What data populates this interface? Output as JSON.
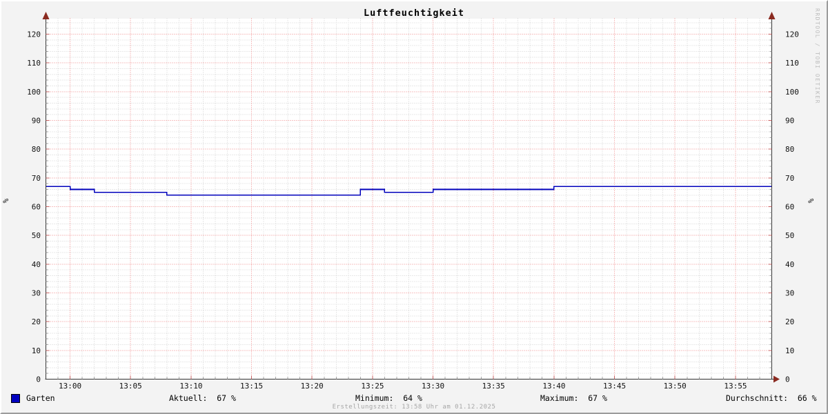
{
  "title": "Luftfeuchtigkeit",
  "watermark": "RRDTOOL / TOBI OETIKER",
  "footer": "Erstellungszeit: 13:58 Uhr am 01.12.2025",
  "legend": {
    "series_label": "Garten",
    "series_color": "#0000bf",
    "aktuell": "Aktuell:  67 %",
    "minimum": "Minimum:  64 %",
    "maximum": "Maximum:  67 %",
    "durchschnitt": "Durchschnitt:  66 %"
  },
  "chart_data": {
    "type": "line",
    "title": "Luftfeuchtigkeit",
    "xlabel": "",
    "ylabel": "%",
    "x_range": [
      "12:58",
      "13:58"
    ],
    "ylim": [
      0,
      126
    ],
    "y_tick_step_major": 10,
    "y_tick_step_minor": 2,
    "x_tick_step_major_min": 5,
    "x_tick_step_minor_min": 1,
    "y_ticks": [
      0,
      10,
      20,
      30,
      40,
      50,
      60,
      70,
      80,
      90,
      100,
      110,
      120
    ],
    "x_ticks": [
      "13:00",
      "13:05",
      "13:10",
      "13:15",
      "13:20",
      "13:25",
      "13:30",
      "13:35",
      "13:40",
      "13:45",
      "13:50",
      "13:55"
    ],
    "grid": "on",
    "legend_position": "bottom",
    "series": [
      {
        "name": "Garten",
        "unit": "%",
        "color": "#0000bb",
        "steps": [
          [
            "12:58",
            67
          ],
          [
            "13:00",
            66
          ],
          [
            "13:02",
            65
          ],
          [
            "13:08",
            64
          ],
          [
            "13:24",
            66
          ],
          [
            "13:26",
            65
          ],
          [
            "13:30",
            66
          ],
          [
            "13:40",
            67
          ]
        ],
        "end_time": "13:58",
        "stats": {
          "aktuell": 67,
          "minimum": 64,
          "maximum": 67,
          "durchschnitt": 66
        }
      }
    ],
    "colors": {
      "major_grid": "#f08585",
      "minor_grid": "#d2d2d2",
      "axis": "#333333",
      "arrow": "#8a2a20",
      "tick_major": "#c86060",
      "tick_minor": "#999999",
      "tick_label": "#111111",
      "canvas": "#ffffff",
      "background": "#f3f3f3"
    }
  }
}
